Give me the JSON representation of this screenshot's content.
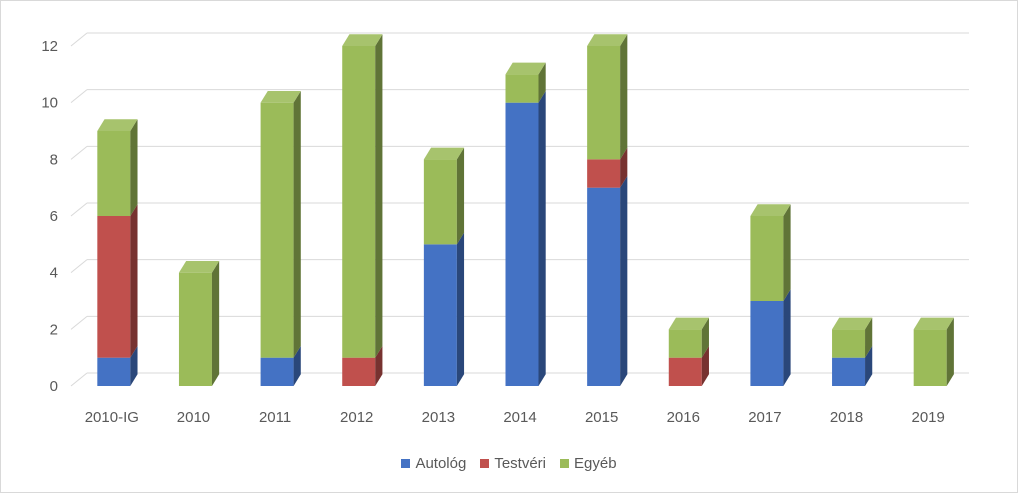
{
  "chart_data": {
    "type": "bar",
    "stacked": true,
    "style": "3d-columns",
    "categories": [
      "2010-IG",
      "2010",
      "2011",
      "2012",
      "2013",
      "2014",
      "2015",
      "2016",
      "2017",
      "2018",
      "2019"
    ],
    "series": [
      {
        "name": "Autológ",
        "color": "#4472c4",
        "values": [
          1,
          0,
          1,
          0,
          5,
          10,
          7,
          0,
          3,
          1,
          0
        ]
      },
      {
        "name": "Testvéri",
        "color": "#c0504d",
        "values": [
          5,
          0,
          0,
          1,
          0,
          0,
          1,
          1,
          0,
          0,
          0
        ]
      },
      {
        "name": "Egyéb",
        "color": "#9bbb59",
        "values": [
          3,
          4,
          9,
          11,
          3,
          1,
          4,
          1,
          3,
          1,
          2
        ]
      }
    ],
    "yticks": [
      0,
      2,
      4,
      6,
      8,
      10,
      12
    ],
    "ylim": [
      0,
      12
    ],
    "grid": true,
    "legend_position": "bottom",
    "title": "",
    "xlabel": "",
    "ylabel": ""
  }
}
